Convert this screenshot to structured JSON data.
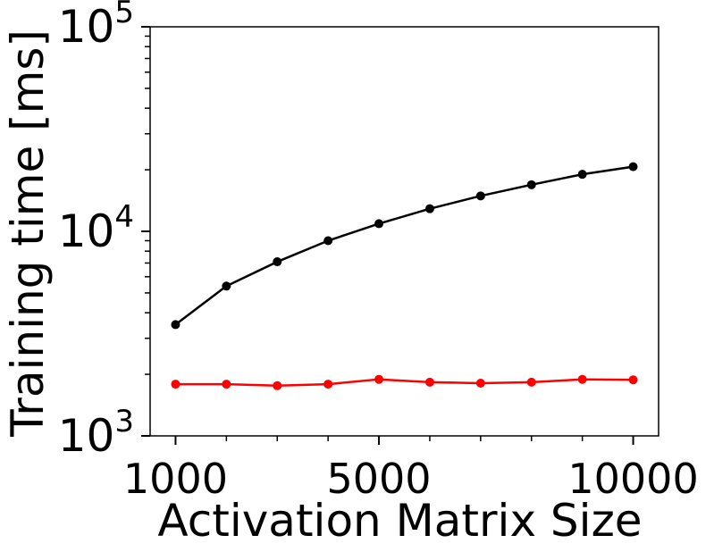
{
  "chart_data": {
    "type": "line",
    "xlabel": "Activation Matrix Size",
    "ylabel": "Training time [ms]",
    "xlim": [
      500,
      10500
    ],
    "x_tick_labels": [
      "1000",
      "5000",
      "10000"
    ],
    "x_tick_values": [
      1000,
      5000,
      10000
    ],
    "x_minor_ticks": [
      2000,
      3000,
      4000,
      6000,
      7000,
      8000,
      9000
    ],
    "yscale": "log",
    "ylim": [
      1000,
      100000
    ],
    "y_major_ticks": [
      {
        "value": 1000,
        "base": "10",
        "exp": "3"
      },
      {
        "value": 10000,
        "base": "10",
        "exp": "4"
      },
      {
        "value": 100000,
        "base": "10",
        "exp": "5"
      }
    ],
    "x": [
      1000,
      2000,
      3000,
      4000,
      5000,
      6000,
      7000,
      8000,
      9000,
      10000
    ],
    "series": [
      {
        "name": "black-series",
        "color": "#000000",
        "values": [
          3500,
          5400,
          7100,
          9000,
          10900,
          12900,
          14900,
          16900,
          19000,
          20700
        ]
      },
      {
        "name": "red-series",
        "color": "#ff0000",
        "values": [
          1790,
          1790,
          1760,
          1790,
          1890,
          1830,
          1810,
          1830,
          1890,
          1880
        ]
      }
    ]
  }
}
